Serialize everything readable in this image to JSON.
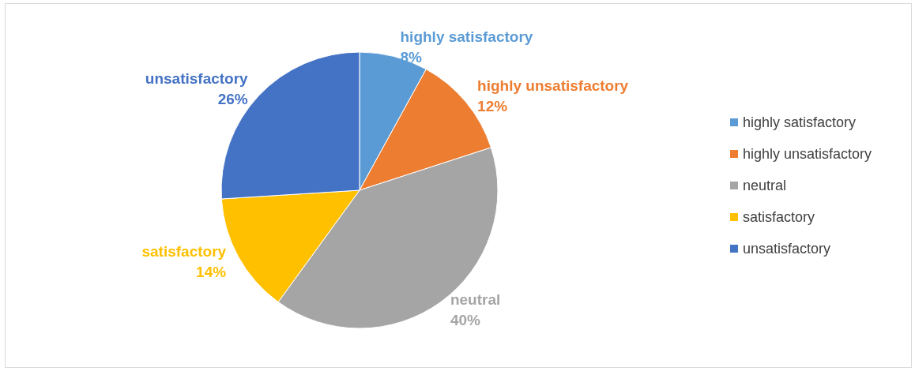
{
  "chart_data": {
    "type": "pie",
    "categories": [
      "highly satisfactory",
      "highly unsatisfactory",
      "neutral",
      "satisfactory",
      "unsatisfactory"
    ],
    "values": [
      8,
      12,
      40,
      14,
      26
    ],
    "value_labels": [
      "8%",
      "12%",
      "40%",
      "14%",
      "26%"
    ],
    "colors": [
      "#5b9bd5",
      "#ed7d31",
      "#a5a5a5",
      "#ffc000",
      "#4472c4"
    ],
    "legend": "right"
  }
}
